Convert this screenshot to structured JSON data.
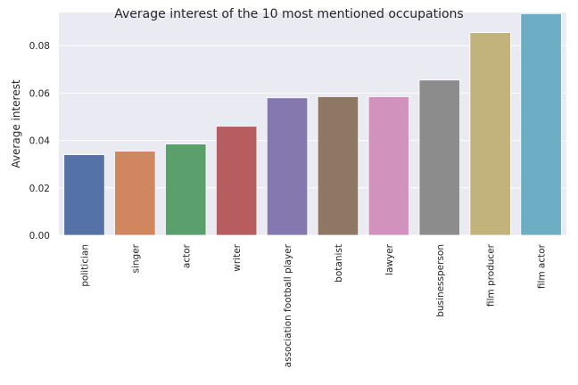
{
  "chart_data": {
    "type": "bar",
    "title": "Average interest of the 10 most mentioned occupations",
    "xlabel": "",
    "ylabel": "Average interest",
    "categories": [
      "politician",
      "singer",
      "actor",
      "writer",
      "association football player",
      "botanist",
      "lawyer",
      "businessperson",
      "film producer",
      "film actor"
    ],
    "values": [
      0.034,
      0.0355,
      0.0385,
      0.046,
      0.058,
      0.0585,
      0.0585,
      0.0655,
      0.0855,
      0.0935
    ],
    "colors": [
      "#5572a6",
      "#d0865e",
      "#5b9f6c",
      "#b75c5f",
      "#8578af",
      "#8e7863",
      "#d193bd",
      "#8c8c8c",
      "#c2b27b",
      "#6eaec4"
    ],
    "yticks": [
      0.0,
      0.02,
      0.04,
      0.06,
      0.08
    ],
    "ytick_labels": [
      "0.00",
      "0.02",
      "0.04",
      "0.06",
      "0.08"
    ],
    "ylim": [
      0,
      0.094
    ],
    "grid": true,
    "background": "#eaeaf2"
  }
}
